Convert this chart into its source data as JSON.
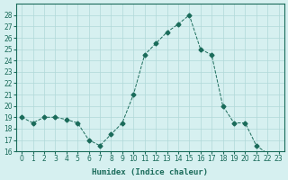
{
  "x": [
    0,
    1,
    2,
    3,
    4,
    5,
    6,
    7,
    8,
    9,
    10,
    11,
    12,
    13,
    14,
    15,
    16,
    17,
    18,
    19,
    20,
    21,
    22,
    23
  ],
  "y": [
    19.0,
    18.5,
    19.0,
    19.0,
    18.8,
    18.5,
    17.0,
    16.5,
    17.5,
    18.5,
    21.0,
    24.5,
    25.5,
    26.5,
    27.2,
    28.0,
    25.0,
    24.5,
    20.0,
    18.5,
    18.5,
    16.5,
    15.8,
    15.8
  ],
  "xlabel": "Humidex (Indice chaleur)",
  "ylim": [
    16,
    29
  ],
  "xlim": [
    -0.5,
    23.5
  ],
  "yticks": [
    16,
    17,
    18,
    19,
    20,
    21,
    22,
    23,
    24,
    25,
    26,
    27,
    28
  ],
  "xticks": [
    0,
    1,
    2,
    3,
    4,
    5,
    6,
    7,
    8,
    9,
    10,
    11,
    12,
    13,
    14,
    15,
    16,
    17,
    18,
    19,
    20,
    21,
    22,
    23
  ],
  "line_color": "#1a6b5a",
  "marker": "D",
  "marker_size": 2.5,
  "linewidth": 0.7,
  "bg_color": "#d6f0f0",
  "grid_color": "#b0d8d8"
}
